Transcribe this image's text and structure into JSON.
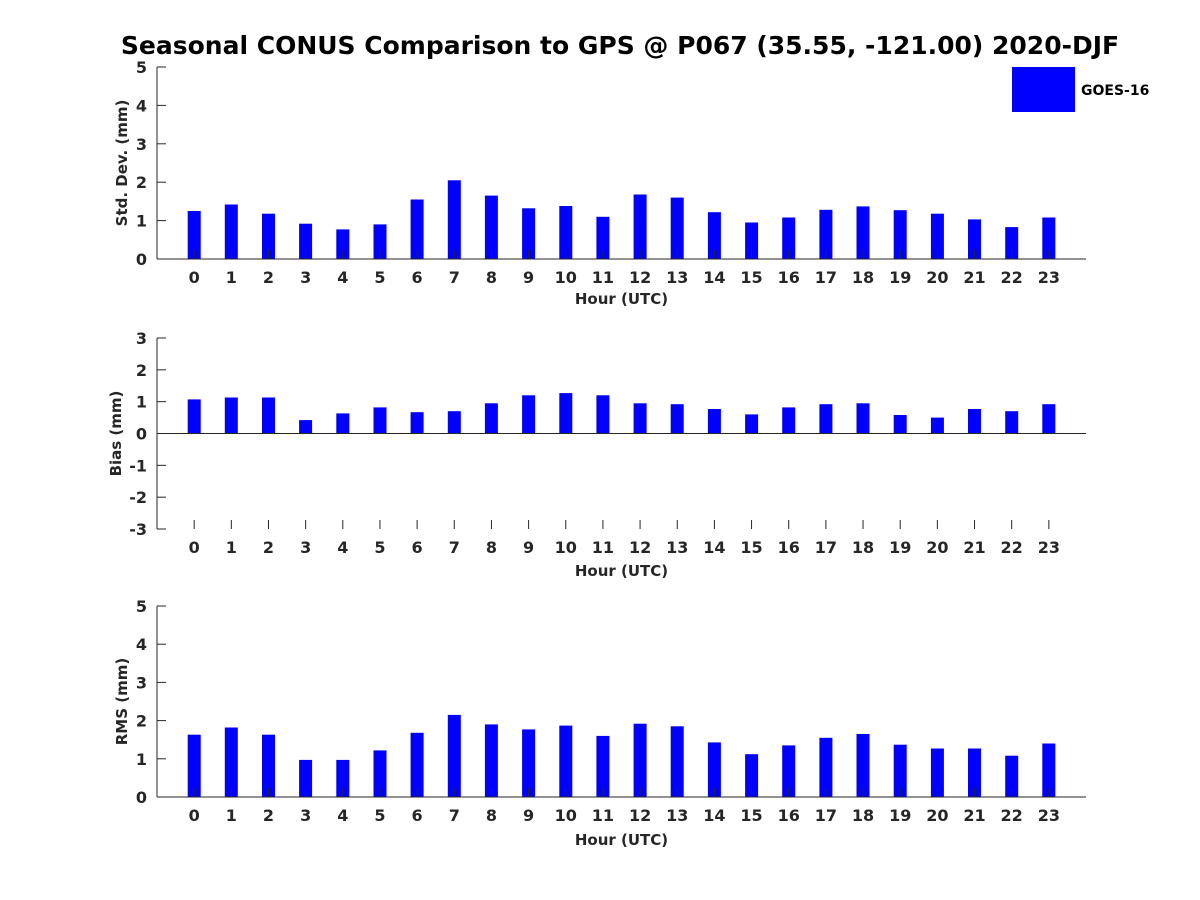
{
  "chart_data": {
    "title": "Seasonal CONUS Comparison to GPS @ P067 (35.55, -121.00) 2020-DJF",
    "legend": {
      "label": "GOES-16",
      "color": "#0000ff",
      "placement": "top-right"
    },
    "bar_color": "#0000ff",
    "panels": [
      {
        "type": "bar",
        "ylabel": "Std. Dev. (mm)",
        "xlabel": "Hour (UTC)",
        "ylim": [
          0,
          5
        ],
        "yticks": [
          0,
          1,
          2,
          3,
          4,
          5
        ],
        "categories": [
          0,
          1,
          2,
          3,
          4,
          5,
          6,
          7,
          8,
          9,
          10,
          11,
          12,
          13,
          14,
          15,
          16,
          17,
          18,
          19,
          20,
          21,
          22,
          23
        ],
        "series": [
          {
            "name": "GOES-16",
            "values": [
              1.25,
              1.42,
              1.18,
              0.92,
              0.77,
              0.9,
              1.55,
              2.05,
              1.65,
              1.32,
              1.38,
              1.1,
              1.68,
              1.6,
              1.22,
              0.95,
              1.08,
              1.28,
              1.37,
              1.27,
              1.18,
              1.03,
              0.83,
              1.08
            ]
          }
        ]
      },
      {
        "type": "bar",
        "ylabel": "Bias (mm)",
        "xlabel": "Hour (UTC)",
        "ylim": [
          -3,
          3
        ],
        "yticks": [
          -3,
          -2,
          -1,
          0,
          1,
          2,
          3
        ],
        "categories": [
          0,
          1,
          2,
          3,
          4,
          5,
          6,
          7,
          8,
          9,
          10,
          11,
          12,
          13,
          14,
          15,
          16,
          17,
          18,
          19,
          20,
          21,
          22,
          23
        ],
        "series": [
          {
            "name": "GOES-16",
            "values": [
              1.07,
              1.13,
              1.13,
              0.42,
              0.63,
              0.82,
              0.67,
              0.7,
              0.95,
              1.2,
              1.27,
              1.2,
              0.95,
              0.92,
              0.77,
              0.6,
              0.82,
              0.92,
              0.95,
              0.58,
              0.5,
              0.77,
              0.7,
              0.92
            ]
          }
        ]
      },
      {
        "type": "bar",
        "ylabel": "RMS (mm)",
        "xlabel": "Hour (UTC)",
        "ylim": [
          0,
          5
        ],
        "yticks": [
          0,
          1,
          2,
          3,
          4,
          5
        ],
        "categories": [
          0,
          1,
          2,
          3,
          4,
          5,
          6,
          7,
          8,
          9,
          10,
          11,
          12,
          13,
          14,
          15,
          16,
          17,
          18,
          19,
          20,
          21,
          22,
          23
        ],
        "series": [
          {
            "name": "GOES-16",
            "values": [
              1.63,
              1.82,
              1.63,
              0.97,
              0.97,
              1.22,
              1.68,
              2.15,
              1.9,
              1.77,
              1.87,
              1.6,
              1.92,
              1.85,
              1.43,
              1.12,
              1.35,
              1.55,
              1.65,
              1.37,
              1.27,
              1.27,
              1.08,
              1.4
            ]
          }
        ]
      }
    ]
  }
}
